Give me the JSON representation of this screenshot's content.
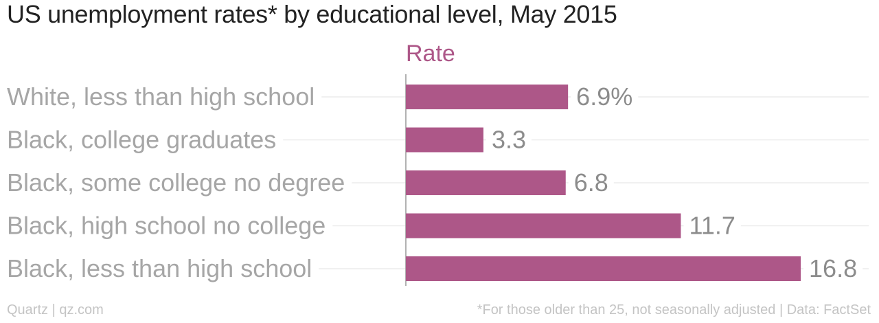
{
  "title": "US unemployment rates* by educational level, May 2015",
  "footer": {
    "source_left": "Quartz | qz.com",
    "note_right": "*For those older than 25, not seasonally adjusted | Data: FactSet"
  },
  "colors": {
    "bar": "#ad5788",
    "series_label": "#ad5788",
    "category_label": "#a6a6a6",
    "value_label": "#8c8c8c",
    "gridline": "#ececec",
    "axis": "#999999"
  },
  "chart_data": {
    "type": "bar",
    "orientation": "horizontal",
    "categories": [
      "White, less than high school",
      "Black, college graduates",
      "Black, some college no degree",
      "Black, high school no college",
      "Black, less than high school"
    ],
    "series": [
      {
        "name": "Rate",
        "values": [
          6.9,
          3.3,
          6.8,
          11.7,
          16.8
        ]
      }
    ],
    "value_labels": [
      "6.9%",
      "3.3",
      "6.8",
      "11.7",
      "16.8"
    ],
    "xlim": [
      0,
      17.5
    ],
    "grid": true,
    "legend": "none"
  }
}
